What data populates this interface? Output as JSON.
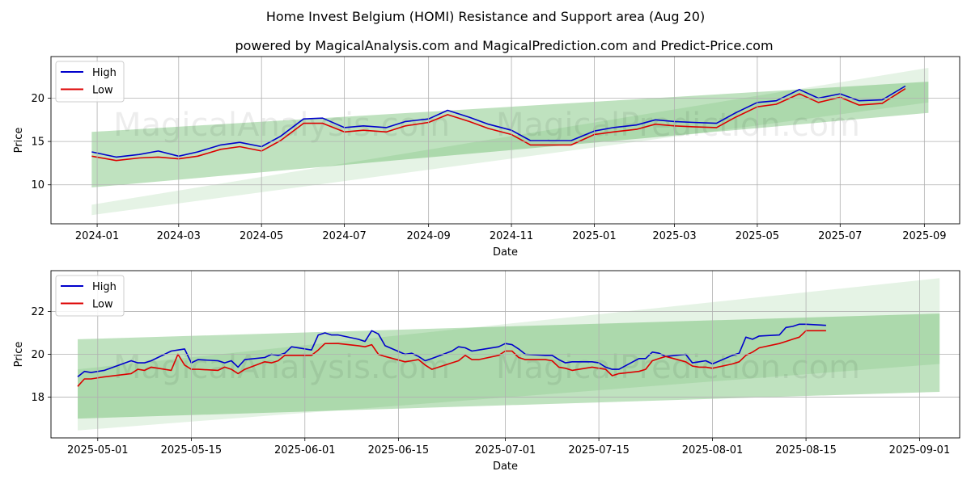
{
  "header": {
    "title": "Home Invest Belgium (HOMI) Resistance and Support area (Aug 20)",
    "subtitle": "powered by MagicalAnalysis.com and MagicalPrediction.com and Predict-Price.com"
  },
  "watermarks": [
    "MagicalAnalysis.com",
    "MagicalPrediction.com"
  ],
  "colors": {
    "high": "#0000cc",
    "low": "#dd0000",
    "band": "#2ca02c",
    "grid": "#b0b0b0"
  },
  "chart_data": [
    {
      "type": "line",
      "xlabel": "Date",
      "ylabel": "Price",
      "x_ticks": [
        "2024-01",
        "2024-03",
        "2024-05",
        "2024-07",
        "2024-09",
        "2024-11",
        "2025-01",
        "2025-03",
        "2025-05",
        "2025-07",
        "2025-09"
      ],
      "y_ticks": [
        10,
        15,
        20
      ],
      "ylim": [
        5.5,
        24.8
      ],
      "grid": true,
      "legend": "top-left",
      "series": [
        {
          "name": "High",
          "color": "#0000cc",
          "x": [
            "2023-12-28",
            "2024-01-15",
            "2024-02-01",
            "2024-02-15",
            "2024-03-01",
            "2024-03-15",
            "2024-04-01",
            "2024-04-15",
            "2024-05-01",
            "2024-05-15",
            "2024-06-01",
            "2024-06-15",
            "2024-07-01",
            "2024-07-15",
            "2024-08-01",
            "2024-08-15",
            "2024-09-01",
            "2024-09-15",
            "2024-10-01",
            "2024-10-15",
            "2024-11-01",
            "2024-11-15",
            "2024-12-01",
            "2024-12-15",
            "2025-01-01",
            "2025-01-15",
            "2025-02-01",
            "2025-02-15",
            "2025-03-01",
            "2025-03-15",
            "2025-04-01",
            "2025-04-15",
            "2025-05-01",
            "2025-05-15",
            "2025-06-01",
            "2025-06-15",
            "2025-07-01",
            "2025-07-15",
            "2025-08-01",
            "2025-08-18"
          ],
          "values": [
            13.8,
            13.2,
            13.5,
            13.9,
            13.3,
            13.8,
            14.6,
            14.9,
            14.4,
            15.6,
            17.6,
            17.7,
            16.6,
            16.8,
            16.6,
            17.3,
            17.6,
            18.6,
            17.8,
            17.0,
            16.3,
            15.1,
            15.1,
            15.1,
            16.2,
            16.6,
            16.9,
            17.5,
            17.3,
            17.2,
            17.1,
            18.3,
            19.5,
            19.7,
            21.0,
            20.0,
            20.5,
            19.7,
            19.8,
            21.4
          ]
        },
        {
          "name": "Low",
          "color": "#dd0000",
          "x": [
            "2023-12-28",
            "2024-01-15",
            "2024-02-01",
            "2024-02-15",
            "2024-03-01",
            "2024-03-15",
            "2024-04-01",
            "2024-04-15",
            "2024-05-01",
            "2024-05-15",
            "2024-06-01",
            "2024-06-15",
            "2024-07-01",
            "2024-07-15",
            "2024-08-01",
            "2024-08-15",
            "2024-09-01",
            "2024-09-15",
            "2024-10-01",
            "2024-10-15",
            "2024-11-01",
            "2024-11-15",
            "2024-12-01",
            "2024-12-15",
            "2025-01-01",
            "2025-01-15",
            "2025-02-01",
            "2025-02-15",
            "2025-03-01",
            "2025-03-15",
            "2025-04-01",
            "2025-04-15",
            "2025-05-01",
            "2025-05-15",
            "2025-06-01",
            "2025-06-15",
            "2025-07-01",
            "2025-07-15",
            "2025-08-01",
            "2025-08-18"
          ],
          "values": [
            13.3,
            12.8,
            13.1,
            13.2,
            13.0,
            13.3,
            14.1,
            14.4,
            13.9,
            15.1,
            17.1,
            17.1,
            16.1,
            16.3,
            16.1,
            16.8,
            17.2,
            18.1,
            17.3,
            16.5,
            15.8,
            14.6,
            14.6,
            14.6,
            15.8,
            16.1,
            16.4,
            17.0,
            16.8,
            16.7,
            16.6,
            17.8,
            19.0,
            19.3,
            20.5,
            19.5,
            20.1,
            19.2,
            19.4,
            21.1
          ]
        }
      ],
      "bands": [
        {
          "x": [
            "2023-12-28",
            "2025-09-04"
          ],
          "upper": [
            16.1,
            21.9
          ],
          "lower": [
            9.7,
            18.3
          ]
        },
        {
          "x": [
            "2023-12-28",
            "2025-09-04"
          ],
          "upper": [
            7.7,
            23.5
          ],
          "lower": [
            6.5,
            19.5
          ]
        }
      ]
    },
    {
      "type": "line",
      "xlabel": "Date",
      "ylabel": "Price",
      "x_ticks": [
        "2025-05-01",
        "2025-05-15",
        "2025-06-01",
        "2025-06-15",
        "2025-07-01",
        "2025-07-15",
        "2025-08-01",
        "2025-08-15",
        "2025-09-01"
      ],
      "y_ticks": [
        18,
        20,
        22
      ],
      "ylim": [
        16.1,
        23.9
      ],
      "grid": true,
      "legend": "top-left",
      "series": [
        {
          "name": "High",
          "color": "#0000cc",
          "x": [
            "2025-04-28",
            "2025-04-29",
            "2025-04-30",
            "2025-05-02",
            "2025-05-06",
            "2025-05-07",
            "2025-05-08",
            "2025-05-09",
            "2025-05-12",
            "2025-05-13",
            "2025-05-14",
            "2025-05-15",
            "2025-05-16",
            "2025-05-19",
            "2025-05-20",
            "2025-05-21",
            "2025-05-22",
            "2025-05-23",
            "2025-05-26",
            "2025-05-27",
            "2025-05-28",
            "2025-05-29",
            "2025-05-30",
            "2025-06-02",
            "2025-06-03",
            "2025-06-04",
            "2025-06-05",
            "2025-06-06",
            "2025-06-09",
            "2025-06-10",
            "2025-06-11",
            "2025-06-12",
            "2025-06-13",
            "2025-06-16",
            "2025-06-17",
            "2025-06-18",
            "2025-06-19",
            "2025-06-20",
            "2025-06-23",
            "2025-06-24",
            "2025-06-25",
            "2025-06-26",
            "2025-06-27",
            "2025-06-30",
            "2025-07-01",
            "2025-07-02",
            "2025-07-03",
            "2025-07-04",
            "2025-07-07",
            "2025-07-08",
            "2025-07-09",
            "2025-07-10",
            "2025-07-11",
            "2025-07-14",
            "2025-07-15",
            "2025-07-16",
            "2025-07-17",
            "2025-07-18",
            "2025-07-21",
            "2025-07-22",
            "2025-07-23",
            "2025-07-24",
            "2025-07-25",
            "2025-07-28",
            "2025-07-29",
            "2025-07-30",
            "2025-07-31",
            "2025-08-01",
            "2025-08-04",
            "2025-08-05",
            "2025-08-06",
            "2025-08-07",
            "2025-08-08",
            "2025-08-11",
            "2025-08-12",
            "2025-08-13",
            "2025-08-14",
            "2025-08-15",
            "2025-08-18"
          ],
          "values": [
            18.95,
            19.2,
            19.15,
            19.25,
            19.7,
            19.6,
            19.6,
            19.7,
            20.15,
            20.2,
            20.25,
            19.6,
            19.75,
            19.7,
            19.6,
            19.7,
            19.4,
            19.75,
            19.85,
            20.0,
            19.95,
            20.05,
            20.35,
            20.2,
            20.9,
            21.0,
            20.9,
            20.9,
            20.7,
            20.6,
            21.1,
            20.95,
            20.4,
            20.0,
            20.05,
            19.9,
            19.7,
            19.8,
            20.15,
            20.35,
            20.3,
            20.15,
            20.2,
            20.35,
            20.5,
            20.45,
            20.25,
            20.0,
            19.95,
            19.95,
            19.75,
            19.6,
            19.65,
            19.65,
            19.6,
            19.4,
            19.3,
            19.3,
            19.8,
            19.8,
            20.1,
            20.05,
            19.9,
            20.0,
            19.6,
            19.65,
            19.7,
            19.55,
            19.95,
            20.05,
            20.8,
            20.7,
            20.85,
            20.9,
            21.25,
            21.3,
            21.4,
            21.4,
            21.35
          ]
        },
        {
          "name": "Low",
          "color": "#dd0000",
          "x": [
            "2025-04-28",
            "2025-04-29",
            "2025-04-30",
            "2025-05-02",
            "2025-05-06",
            "2025-05-07",
            "2025-05-08",
            "2025-05-09",
            "2025-05-12",
            "2025-05-13",
            "2025-05-14",
            "2025-05-15",
            "2025-05-16",
            "2025-05-19",
            "2025-05-20",
            "2025-05-21",
            "2025-05-22",
            "2025-05-23",
            "2025-05-26",
            "2025-05-27",
            "2025-05-28",
            "2025-05-29",
            "2025-05-30",
            "2025-06-02",
            "2025-06-03",
            "2025-06-04",
            "2025-06-05",
            "2025-06-06",
            "2025-06-09",
            "2025-06-10",
            "2025-06-11",
            "2025-06-12",
            "2025-06-13",
            "2025-06-16",
            "2025-06-17",
            "2025-06-18",
            "2025-06-19",
            "2025-06-20",
            "2025-06-23",
            "2025-06-24",
            "2025-06-25",
            "2025-06-26",
            "2025-06-27",
            "2025-06-30",
            "2025-07-01",
            "2025-07-02",
            "2025-07-03",
            "2025-07-04",
            "2025-07-07",
            "2025-07-08",
            "2025-07-09",
            "2025-07-10",
            "2025-07-11",
            "2025-07-14",
            "2025-07-15",
            "2025-07-16",
            "2025-07-17",
            "2025-07-18",
            "2025-07-21",
            "2025-07-22",
            "2025-07-23",
            "2025-07-24",
            "2025-07-25",
            "2025-07-28",
            "2025-07-29",
            "2025-07-30",
            "2025-07-31",
            "2025-08-01",
            "2025-08-04",
            "2025-08-05",
            "2025-08-06",
            "2025-08-07",
            "2025-08-08",
            "2025-08-11",
            "2025-08-12",
            "2025-08-13",
            "2025-08-14",
            "2025-08-15",
            "2025-08-18"
          ],
          "values": [
            18.5,
            18.85,
            18.85,
            18.95,
            19.1,
            19.3,
            19.25,
            19.4,
            19.25,
            20.0,
            19.5,
            19.3,
            19.3,
            19.25,
            19.4,
            19.3,
            19.1,
            19.3,
            19.65,
            19.6,
            19.7,
            19.95,
            19.95,
            19.95,
            20.2,
            20.5,
            20.5,
            20.5,
            20.4,
            20.35,
            20.45,
            20.0,
            19.9,
            19.65,
            19.7,
            19.75,
            19.5,
            19.3,
            19.6,
            19.7,
            19.95,
            19.75,
            19.75,
            19.95,
            20.15,
            20.15,
            19.85,
            19.75,
            19.75,
            19.7,
            19.4,
            19.35,
            19.25,
            19.4,
            19.35,
            19.3,
            19.0,
            19.1,
            19.2,
            19.3,
            19.7,
            19.8,
            19.9,
            19.65,
            19.45,
            19.4,
            19.4,
            19.35,
            19.55,
            19.65,
            19.95,
            20.1,
            20.3,
            20.5,
            20.6,
            20.7,
            20.8,
            21.1,
            21.1
          ]
        }
      ],
      "bands": [
        {
          "x": [
            "2025-04-28",
            "2025-09-04"
          ],
          "upper": [
            20.7,
            21.9
          ],
          "lower": [
            17.0,
            18.25
          ]
        },
        {
          "x": [
            "2025-04-28",
            "2025-09-04"
          ],
          "upper": [
            19.3,
            23.55
          ],
          "lower": [
            16.45,
            19.55
          ]
        }
      ]
    }
  ]
}
